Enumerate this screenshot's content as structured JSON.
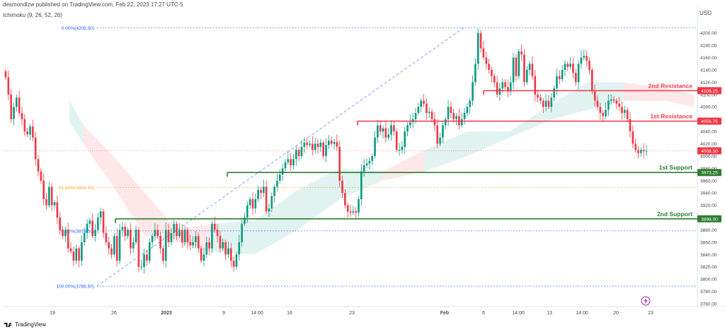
{
  "header": {
    "publisher": "desmondlzw published on TradingView.com, Feb 22, 2023 17:27 UTC-5",
    "indicator": "Ichimoku (9, 26, 52, 26)",
    "currency": "USD"
  },
  "footer": {
    "brand": "TradingView"
  },
  "colors": {
    "up": "#089981",
    "down": "#f23645",
    "resistance": "#f23645",
    "support": "#2e7d32",
    "fib_blue": "#2962ff",
    "fib_orange": "#f5a623",
    "price_line": "#f23645"
  },
  "chart_data": {
    "type": "candlestick",
    "ylim": [
      3760,
      4220
    ],
    "yticks": [
      4200,
      4180,
      4160,
      4140,
      4120,
      4100,
      4080,
      4060,
      4040,
      4020,
      4000,
      3980,
      3960,
      3940,
      3920,
      3900,
      3880,
      3860,
      3840,
      3820,
      3800,
      3780,
      3760
    ],
    "xtick_labels": [
      "19",
      "26",
      "2023",
      "9",
      "14:00",
      "16",
      "23",
      "Feb",
      "6",
      "14:00",
      "13",
      "14:00",
      "20",
      "23"
    ],
    "xtick_emphasis": [
      "2023",
      "Feb"
    ],
    "fib_levels": [
      {
        "label": "0.00%(4208.50)",
        "value": 4208.5
      },
      {
        "label": "61.80%(3949.00)",
        "value": 3949.0
      },
      {
        "label": "78.60%(3878.50)",
        "value": 3878.5
      },
      {
        "label": "100.00%(3788.50)",
        "value": 3788.5
      }
    ],
    "levels": [
      {
        "label": "2nd Resistance",
        "value": 4106.25,
        "price_label": "4106.25",
        "kind": "resistance"
      },
      {
        "label": "1st Resistance",
        "value": 4056.75,
        "price_label": "4056.75",
        "kind": "resistance"
      },
      {
        "label": "1st Support",
        "value": 3973.25,
        "price_label": "3973.25",
        "kind": "support"
      },
      {
        "label": "2nd Support",
        "value": 3898.0,
        "price_label": "3898.00",
        "kind": "support"
      }
    ],
    "current_price": {
      "value": 4008.5,
      "label": "4008.50"
    },
    "candles_close": [
      4128,
      4100,
      4060,
      4080,
      4095,
      4070,
      4060,
      4040,
      4035,
      4048,
      4030,
      3995,
      3975,
      3960,
      3930,
      3920,
      3950,
      3920,
      3925,
      3900,
      3880,
      3870,
      3880,
      3850,
      3845,
      3830,
      3850,
      3830,
      3860,
      3875,
      3890,
      3895,
      3870,
      3880,
      3900,
      3910,
      3875,
      3860,
      3850,
      3840,
      3870,
      3830,
      3880,
      3885,
      3870,
      3880,
      3850,
      3860,
      3880,
      3820,
      3820,
      3840,
      3830,
      3860,
      3870,
      3880,
      3870,
      3850,
      3830,
      3880,
      3860,
      3875,
      3890,
      3870,
      3880,
      3860,
      3880,
      3860,
      3855,
      3860,
      3870,
      3850,
      3830,
      3840,
      3860,
      3850,
      3890,
      3880,
      3870,
      3850,
      3860,
      3840,
      3850,
      3830,
      3820,
      3840,
      3860,
      3890,
      3900,
      3920,
      3930,
      3915,
      3930,
      3945,
      3940,
      3950,
      3910,
      3915,
      3935,
      3950,
      3960,
      3970,
      3980,
      3990,
      3995,
      3985,
      3995,
      4010,
      4000,
      4015,
      4022,
      4018,
      4020,
      4010,
      4020,
      4015,
      4022,
      4000,
      4018,
      4025,
      4020,
      4023,
      4015,
      3960,
      3940,
      3920,
      3910,
      3908,
      3910,
      3908,
      3930,
      3975,
      3985,
      3988,
      3992,
      4000,
      4030,
      4050,
      4040,
      4045,
      4030,
      4035,
      4050,
      4040,
      4010,
      4010,
      4015,
      4040,
      4050,
      4055,
      4060,
      4070,
      4080,
      4090,
      4085,
      4070,
      4072,
      4060,
      4050,
      4020,
      4030,
      4050,
      4060,
      4080,
      4070,
      4060,
      4065,
      4050,
      4060,
      4070,
      4080,
      4090,
      4120,
      4150,
      4200,
      4175,
      4160,
      4150,
      4140,
      4130,
      4120,
      4100,
      4110,
      4120,
      4112,
      4105,
      4120,
      4160,
      4130,
      4170,
      4165,
      4120,
      4140,
      4150,
      4130,
      4100,
      4095,
      4090,
      4080,
      4090,
      4080,
      4095,
      4110,
      4130,
      4125,
      4140,
      4150,
      4145,
      4150,
      4135,
      4120,
      4150,
      4160,
      4163,
      4155,
      4140,
      4105,
      4090,
      4080,
      4070,
      4065,
      4075,
      4090,
      4092,
      4090,
      4085,
      4080,
      4070,
      4075,
      4060,
      4040,
      4020,
      4010,
      4005,
      4010,
      4008,
      4008.5
    ],
    "cloud_segments": [
      {
        "from": 4090,
        "to": 4060,
        "color": "green"
      },
      {
        "from": 4060,
        "to": 3990,
        "color": "red"
      },
      {
        "from": 3990,
        "to": 3880,
        "color": "red"
      },
      {
        "from": 3880,
        "to": 3860,
        "color": "green"
      },
      {
        "from": 3860,
        "to": 3950,
        "color": "green"
      },
      {
        "from": 3950,
        "to": 4060,
        "color": "green"
      },
      {
        "from": 4060,
        "to": 4120,
        "color": "red"
      }
    ]
  }
}
